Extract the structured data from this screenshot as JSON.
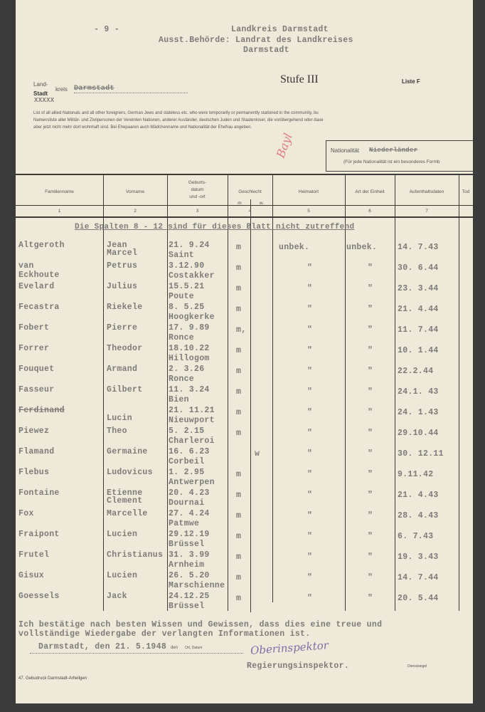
{
  "header": {
    "page_number": "- 9 -",
    "typed_lines": [
      "Landkreis  Darmstadt",
      "Ausst.Behörde: Landrat des Landkreises",
      "Darmstadt"
    ],
    "stufe": "Stufe III",
    "liste": "Liste F",
    "land": "Land-",
    "stadt": "Stadt",
    "kreis": "kreis",
    "kreis_value": "Darmstadt",
    "stadt_value": "XXXXX",
    "intro_en": "List of all allied Nationals and all other foreigners, German Jews and stateless etc. who were temporarily or permanently stationed in the community, bu",
    "intro_de1": "Namensliste aller Militär- und Zivilpersonen der Vereinten Nationen, anderer Ausländer, deutschen Juden und Staatenloser, die vorübergehend oder daue",
    "intro_de2": "aber jetzt nicht mehr dort wohnhaft sind. Bei Ehepaaren auch Mädchenname und Nationalität der Ehefrau angeben.",
    "stamp_mark": "Bayl",
    "nationality_label": "Nationalität",
    "nationality_value": "Niederländer",
    "nationality_note": "(Für jede Nationalität ist ein besonderes Formb"
  },
  "table": {
    "columns": [
      {
        "label": "Familienname",
        "num": "1"
      },
      {
        "label": "Vorname",
        "num": "2"
      },
      {
        "label": "Geburts-\ndatum\nund -ort",
        "num": "3"
      },
      {
        "label": "Geschlecht",
        "num": "4",
        "sub": [
          "m",
          "w."
        ]
      },
      {
        "label": "Heimatort",
        "num": "5"
      },
      {
        "label": "Art der Einheit",
        "num": "6"
      },
      {
        "label": "Aufenthaltsdaten",
        "num": "7"
      },
      {
        "label": "Tod",
        "num": ""
      }
    ],
    "note": "Die Spalten 8 - 12 sind für dieses Blatt nicht zutreffend",
    "rows": [
      {
        "family": "Altgeroth",
        "first": "Jean",
        "first2": "Marcel",
        "date": "21. 9.24",
        "place": "Saint",
        "sex": "m",
        "home": "unbek.",
        "unit": "unbek.",
        "stay": "14. 7.43"
      },
      {
        "family": "van",
        "family2": "Eckhoute",
        "first": "Petrus",
        "date": "3.12.90",
        "place": "Costakker",
        "sex": "m",
        "home": "\"",
        "unit": "\"",
        "stay": "30. 6.44"
      },
      {
        "family": "Evelard",
        "first": "Julius",
        "date": "15.5.21",
        "place": "Poute",
        "sex": "m",
        "home": "\"",
        "unit": "\"",
        "stay": "23. 3.44"
      },
      {
        "family": "Fecastra",
        "first": "Riekele",
        "date": "8. 5.25",
        "place": "Hoogkerke",
        "sex": "m",
        "home": "\"",
        "unit": "\"",
        "stay": "21. 4.44"
      },
      {
        "family": "Fobert",
        "first": "Pierre",
        "date": "17. 9.89",
        "place": "Ronce",
        "sex": "m,",
        "home": "\"",
        "unit": "\"",
        "stay": "11. 7.44"
      },
      {
        "family": "Forrer",
        "first": "Theodor",
        "date": "18.10.22",
        "place": "Hillogom",
        "sex": "m",
        "home": "\"",
        "unit": "\"",
        "stay": "10. 1.44"
      },
      {
        "family": "Fouquet",
        "first": "Armand",
        "date": "2. 3.26",
        "place": "Ronce",
        "sex": "m",
        "home": "\"",
        "unit": "\"",
        "stay": "22.2.44"
      },
      {
        "family": "Fasseur",
        "first": "Gilbert",
        "date": "11. 3.24",
        "place": "Bien",
        "sex": "m",
        "home": "\"",
        "unit": "\"",
        "stay": "24.1. 43"
      },
      {
        "family": "Ferdinand",
        "first": "",
        "first2": "Lucin",
        "date": "21. 11.21",
        "place": "Nieuwport",
        "sex": "m",
        "home": "\"",
        "unit": "\"",
        "stay": "24. 1.43"
      },
      {
        "family": "Piewez",
        "first": "Theo",
        "date": "5. 2.15",
        "place": "Charleroi",
        "sex": "m",
        "home": "\"",
        "unit": "\"",
        "stay": "29.10.44"
      },
      {
        "family": "Flamand",
        "first": "Germaine",
        "date": "16. 6.23",
        "place": "Corbeil",
        "sex": "w",
        "home": "\"",
        "unit": "\"",
        "stay": "30. 12.11"
      },
      {
        "family": "Flebus",
        "first": "Ludovicus",
        "date": "1. 2.95",
        "place": "Antwerpen",
        "sex": "m",
        "home": "\"",
        "unit": "\"",
        "stay": "9.11.42"
      },
      {
        "family": "Fontaine",
        "first": "Etienne",
        "first2": "Clement",
        "date": "20. 4.23",
        "place": "Dournai",
        "sex": "m",
        "home": "\"",
        "unit": "\"",
        "stay": "21. 4.43"
      },
      {
        "family": "Fox",
        "first": "Marcelle",
        "date": "27. 4.24",
        "place": "Patmwe",
        "sex": "m",
        "home": "\"",
        "unit": "\"",
        "stay": "28. 4.43"
      },
      {
        "family": "Fraipont",
        "first": "Lucien",
        "date": "29.12.19",
        "place": "Brüssel",
        "sex": "m",
        "home": "\"",
        "unit": "\"",
        "stay": "6. 7.43"
      },
      {
        "family": "Frutel",
        "first": "Christianus",
        "date": "31. 3.99",
        "place": "Arnheim",
        "sex": "m",
        "home": "\"",
        "unit": "\"",
        "stay": "19. 3.43"
      },
      {
        "family": "Gisux",
        "first": "Lucien",
        "date": "26. 5.20",
        "place": "Marschienne",
        "sex": "m",
        "home": "\"",
        "unit": "\"",
        "stay": "14. 7.44"
      },
      {
        "family": "Goessels",
        "first": "Jack",
        "date": "24.12.25",
        "place": "Brüssel",
        "sex": "m",
        "home": "\"",
        "unit": "\"",
        "stay": "20. 5.44"
      }
    ]
  },
  "footer": {
    "confirm1": "Ich bestätige nach besten Wissen und Gewissen, dass dies eine treue und",
    "confirm2": "vollständige Wiedergabe der verlangten Informationen ist.",
    "place_date": "Darmstadt, den 21. 5.1948",
    "den": "den",
    "ort_datum": "Ort, Datum",
    "title": "Regierungsinspektor.",
    "signature": "Oberinspektor",
    "siegel": "Dienstsiegel",
    "printer": "47. Gebudruck Darmstadt-Arheilgen"
  }
}
